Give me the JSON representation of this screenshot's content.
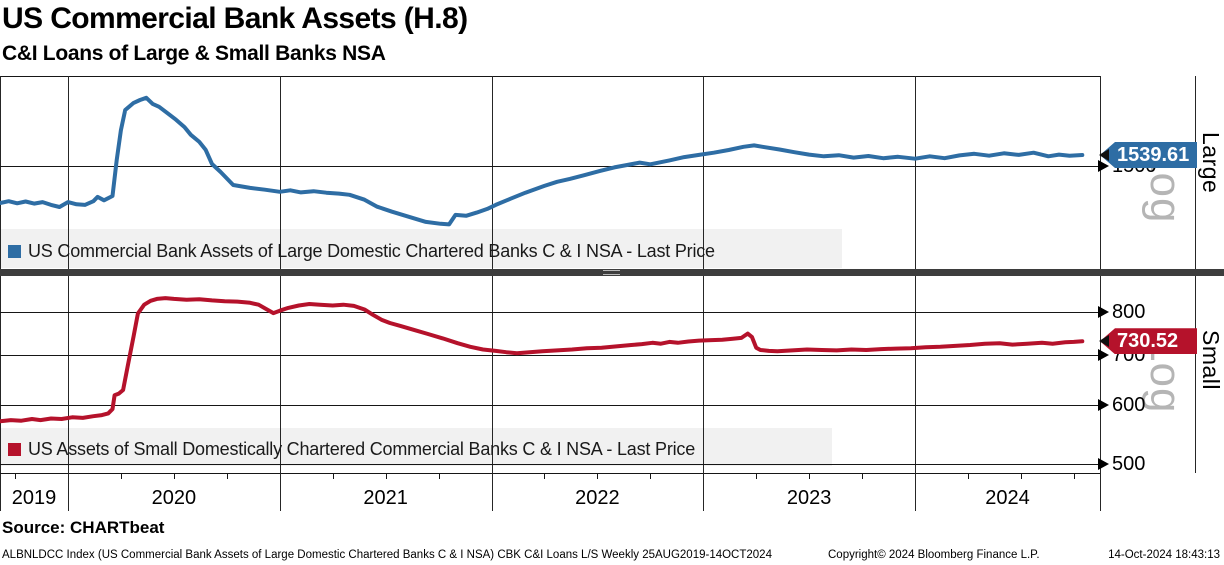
{
  "header": {
    "title": "US Commercial Bank Assets (H.8)",
    "subtitle": "C&I Loans of Large & Small Banks NSA"
  },
  "panels": [
    {
      "name": "Large",
      "scale_label": "Log",
      "last_price": "1539.61",
      "tick_labels": [
        "1500"
      ],
      "legend": "US Commercial Bank Assets of Large Domestic Chartered Banks C & I NSA - Last Price",
      "color": "#2e6da4"
    },
    {
      "name": "Small",
      "scale_label": "Log",
      "last_price": "730.52",
      "tick_labels": [
        "800",
        "700",
        "600",
        "500"
      ],
      "legend": "US Assets of Small Domestically Chartered Commercial Banks C & I NSA - Last Price",
      "color": "#b5122b"
    }
  ],
  "x_axis": {
    "year_labels": [
      "2019",
      "2020",
      "2021",
      "2022",
      "2023",
      "2024"
    ]
  },
  "footer": {
    "source": "Source: CHARTbeat",
    "ticker_line": "ALBNLDCC Index (US Commercial Bank Assets of Large Domestic Chartered Banks C & I NSA) CBK C&I Loans L/S  Weekly 25AUG2019-14OCT2024",
    "copyright": "Copyright© 2024 Bloomberg Finance L.P.",
    "timestamp": "14-Oct-2024 18:43:13"
  },
  "chart_data": [
    {
      "type": "line",
      "name": "US Commercial Bank Assets of Large Domestic Chartered Banks C & I NSA - Last Price",
      "panel": "Large",
      "y_scale": "log",
      "color": "#2e6da4",
      "last_price": 1539.61,
      "y_ticks": [
        1500
      ],
      "y_range_approx": [
        1173,
        1861
      ],
      "x_range": [
        "25AUG2019",
        "14OCT2024"
      ],
      "frequency": "Weekly",
      "x": [
        2019.68,
        2019.72,
        2019.76,
        2019.8,
        2019.84,
        2019.88,
        2019.92,
        2019.96,
        2020.0,
        2020.04,
        2020.08,
        2020.12,
        2020.14,
        2020.17,
        2020.21,
        2020.23,
        2020.25,
        2020.27,
        2020.31,
        2020.34,
        2020.37,
        2020.4,
        2020.43,
        2020.47,
        2020.51,
        2020.55,
        2020.58,
        2020.62,
        2020.65,
        2020.68,
        2020.72,
        2020.78,
        2020.86,
        2020.93,
        2021.0,
        2021.05,
        2021.1,
        2021.16,
        2021.22,
        2021.28,
        2021.33,
        2021.4,
        2021.46,
        2021.53,
        2021.61,
        2021.69,
        2021.76,
        2021.8,
        2021.83,
        2021.88,
        2021.93,
        2021.98,
        2022.02,
        2022.09,
        2022.16,
        2022.25,
        2022.31,
        2022.37,
        2022.44,
        2022.51,
        2022.58,
        2022.65,
        2022.7,
        2022.75,
        2022.84,
        2022.91,
        2022.98,
        2023.05,
        2023.12,
        2023.19,
        2023.24,
        2023.28,
        2023.36,
        2023.43,
        2023.5,
        2023.57,
        2023.64,
        2023.71,
        2023.78,
        2023.85,
        2023.92,
        2024.0,
        2024.07,
        2024.14,
        2024.21,
        2024.28,
        2024.35,
        2024.42,
        2024.49,
        2024.56,
        2024.63,
        2024.68,
        2024.73,
        2024.79
      ],
      "values": [
        1374,
        1380,
        1373,
        1379,
        1372,
        1377,
        1368,
        1361,
        1377,
        1370,
        1368,
        1380,
        1394,
        1383,
        1397,
        1521,
        1633,
        1713,
        1742,
        1754,
        1763,
        1738,
        1726,
        1700,
        1674,
        1645,
        1615,
        1588,
        1559,
        1507,
        1479,
        1434,
        1424,
        1418,
        1411,
        1416,
        1409,
        1413,
        1408,
        1405,
        1401,
        1385,
        1362,
        1346,
        1330,
        1314,
        1308,
        1306,
        1336,
        1333,
        1343,
        1355,
        1368,
        1388,
        1408,
        1431,
        1445,
        1455,
        1468,
        1482,
        1495,
        1505,
        1512,
        1506,
        1520,
        1532,
        1540,
        1548,
        1558,
        1570,
        1575,
        1570,
        1560,
        1550,
        1541,
        1535,
        1539,
        1530,
        1536,
        1528,
        1533,
        1526,
        1535,
        1528,
        1538,
        1544,
        1537,
        1546,
        1540,
        1548,
        1535,
        1541,
        1537,
        1539.61
      ]
    },
    {
      "type": "line",
      "name": "US Assets of Small Domestically Chartered Commercial Banks C & I NSA - Last Price",
      "panel": "Small",
      "y_scale": "log",
      "color": "#b5122b",
      "last_price": 730.52,
      "y_ticks": [
        800,
        700,
        600,
        500
      ],
      "y_range_approx": [
        486,
        892
      ],
      "x_range": [
        "25AUG2019",
        "14OCT2024"
      ],
      "frequency": "Weekly",
      "x": [
        2019.68,
        2019.73,
        2019.78,
        2019.83,
        2019.87,
        2019.92,
        2019.97,
        2020.02,
        2020.07,
        2020.12,
        2020.16,
        2020.19,
        2020.21,
        2020.22,
        2020.24,
        2020.26,
        2020.28,
        2020.31,
        2020.33,
        2020.36,
        2020.39,
        2020.42,
        2020.46,
        2020.5,
        2020.56,
        2020.62,
        2020.68,
        2020.74,
        2020.8,
        2020.86,
        2020.9,
        2020.94,
        2020.97,
        2021.0,
        2021.04,
        2021.09,
        2021.14,
        2021.19,
        2021.25,
        2021.3,
        2021.35,
        2021.4,
        2021.44,
        2021.48,
        2021.52,
        2021.57,
        2021.63,
        2021.7,
        2021.77,
        2021.84,
        2021.9,
        2021.96,
        2022.02,
        2022.07,
        2022.12,
        2022.18,
        2022.24,
        2022.31,
        2022.38,
        2022.45,
        2022.52,
        2022.59,
        2022.66,
        2022.71,
        2022.76,
        2022.8,
        2022.84,
        2022.88,
        2022.93,
        2022.98,
        2023.04,
        2023.09,
        2023.14,
        2023.18,
        2023.21,
        2023.23,
        2023.25,
        2023.27,
        2023.31,
        2023.35,
        2023.42,
        2023.49,
        2023.56,
        2023.63,
        2023.7,
        2023.77,
        2023.84,
        2023.91,
        2023.98,
        2024.05,
        2024.12,
        2024.19,
        2024.26,
        2024.33,
        2024.4,
        2024.46,
        2024.53,
        2024.6,
        2024.65,
        2024.71,
        2024.75,
        2024.79
      ],
      "values": [
        570,
        572,
        571,
        574,
        572,
        575,
        574,
        577,
        576,
        579,
        581,
        584,
        592,
        618,
        621,
        628,
        672,
        742,
        796,
        818,
        828,
        833,
        835,
        833,
        831,
        832,
        829,
        827,
        826,
        823,
        818,
        806,
        797,
        803,
        810,
        816,
        820,
        818,
        816,
        818,
        815,
        806,
        793,
        781,
        773,
        766,
        757,
        747,
        737,
        726,
        718,
        712,
        709,
        706,
        704,
        706,
        708,
        710,
        712,
        715,
        716,
        719,
        722,
        724,
        727,
        725,
        729,
        727,
        730,
        732,
        733,
        734,
        736,
        738,
        748,
        740,
        716,
        711,
        709,
        708,
        710,
        712,
        711,
        710,
        712,
        711,
        713,
        714,
        715,
        717,
        718,
        720,
        722,
        725,
        726,
        723,
        725,
        727,
        725,
        728,
        729,
        730.52
      ]
    }
  ]
}
